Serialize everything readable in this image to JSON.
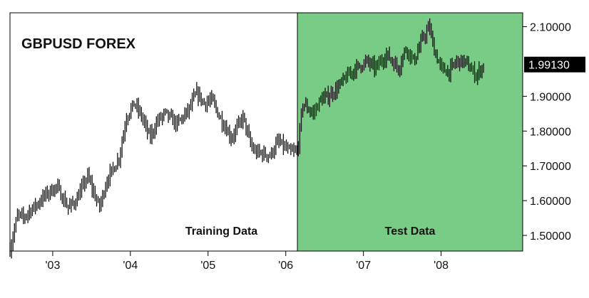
{
  "chart_data": {
    "type": "line",
    "title": "GBPUSD FOREX",
    "xlabel": "",
    "ylabel": "",
    "x_ticks": [
      "'03",
      "'04",
      "'05",
      "'06",
      "'07",
      "'08"
    ],
    "x_tick_values": [
      2003,
      2004,
      2005,
      2006,
      2007,
      2008
    ],
    "xlim": [
      2002.45,
      2009.05
    ],
    "y_ticks": [
      "1.50000",
      "1.60000",
      "1.70000",
      "1.80000",
      "1.90000",
      "2.10000"
    ],
    "y_tick_values": [
      1.5,
      1.6,
      1.7,
      1.8,
      1.9,
      2.1
    ],
    "ylim": [
      1.455,
      2.14
    ],
    "last_value": 1.9913,
    "last_value_label": "1.99130",
    "grid": false,
    "regions": [
      {
        "label": "Training Data",
        "x_start": 2002.45,
        "x_end": 2006.15,
        "color": "#ffffff"
      },
      {
        "label": "Test Data",
        "x_start": 2006.15,
        "x_end": 2009.05,
        "color": "#79cc86"
      }
    ],
    "series": [
      {
        "color": "#111111",
        "x": [
          2002.45,
          2002.55,
          2002.62,
          2002.7,
          2002.8,
          2002.92,
          2003.05,
          2003.2,
          2003.3,
          2003.45,
          2003.6,
          2003.7,
          2003.85,
          2003.95,
          2004.05,
          2004.15,
          2004.25,
          2004.35,
          2004.45,
          2004.6,
          2004.75,
          2004.85,
          2004.95,
          2005.05,
          2005.15,
          2005.3,
          2005.45,
          2005.55,
          2005.6,
          2005.8,
          2005.9,
          2006.0,
          2006.05,
          2006.15,
          2006.22,
          2006.35,
          2006.45,
          2006.55,
          2006.65,
          2006.8,
          2006.9,
          2007.05,
          2007.15,
          2007.3,
          2007.45,
          2007.55,
          2007.65,
          2007.75,
          2007.85,
          2007.9,
          2008.0,
          2008.1,
          2008.2,
          2008.3,
          2008.45,
          2008.55
        ],
        "y": [
          1.46,
          1.56,
          1.55,
          1.57,
          1.59,
          1.62,
          1.64,
          1.58,
          1.6,
          1.67,
          1.58,
          1.66,
          1.72,
          1.84,
          1.88,
          1.84,
          1.78,
          1.83,
          1.85,
          1.82,
          1.86,
          1.91,
          1.88,
          1.89,
          1.84,
          1.78,
          1.84,
          1.76,
          1.74,
          1.73,
          1.77,
          1.75,
          1.74,
          1.74,
          1.88,
          1.85,
          1.89,
          1.9,
          1.92,
          1.96,
          1.98,
          2.0,
          1.98,
          2.02,
          1.98,
          2.04,
          2.0,
          2.06,
          2.1,
          2.04,
          1.98,
          1.97,
          2.0,
          2.0,
          1.96,
          1.99
        ]
      }
    ]
  }
}
